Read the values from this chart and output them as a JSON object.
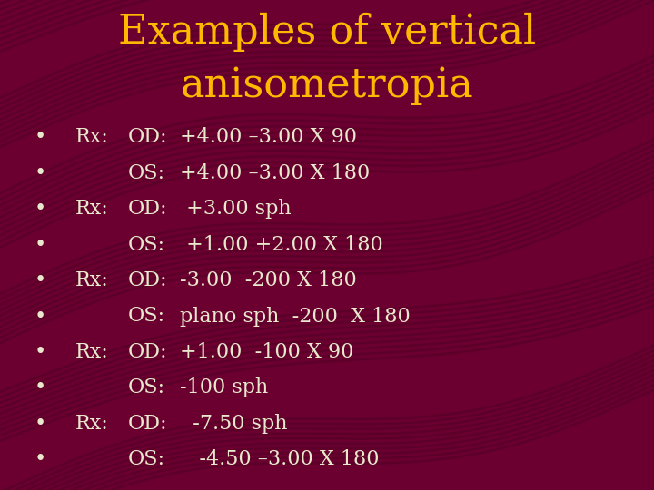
{
  "title_line1": "Examples of vertical",
  "title_line2": "anisometropia",
  "title_color": "#FFB800",
  "title_fontsize": 32,
  "bg_color": "#6B0030",
  "text_color": "#E8E8CC",
  "text_fontsize": 16,
  "wave_color": "#550025",
  "bullet_items": [
    {
      "rx": "Rx:",
      "label": "OD:",
      "value": "+4.00 –3.00 X 90"
    },
    {
      "rx": "",
      "label": "OS:",
      "value": "+4.00 –3.00 X 180"
    },
    {
      "rx": "Rx:",
      "label": "OD:",
      "value": " +3.00 sph"
    },
    {
      "rx": "",
      "label": "OS:",
      "value": " +1.00 +2.00 X 180"
    },
    {
      "rx": "Rx:",
      "label": "OD:",
      "value": "-3.00  -200 X 180"
    },
    {
      "rx": "",
      "label": "OS:",
      "value": "plano sph  -200  X 180"
    },
    {
      "rx": "Rx:",
      "label": "OD:",
      "value": "+1.00  -100 X 90"
    },
    {
      "rx": "",
      "label": "OS:",
      "value": "-100 sph"
    },
    {
      "rx": "Rx:",
      "label": "OD:",
      "value": "  -7.50 sph"
    },
    {
      "rx": "",
      "label": "OS:",
      "value": "   -4.50 –3.00 X 180"
    }
  ]
}
